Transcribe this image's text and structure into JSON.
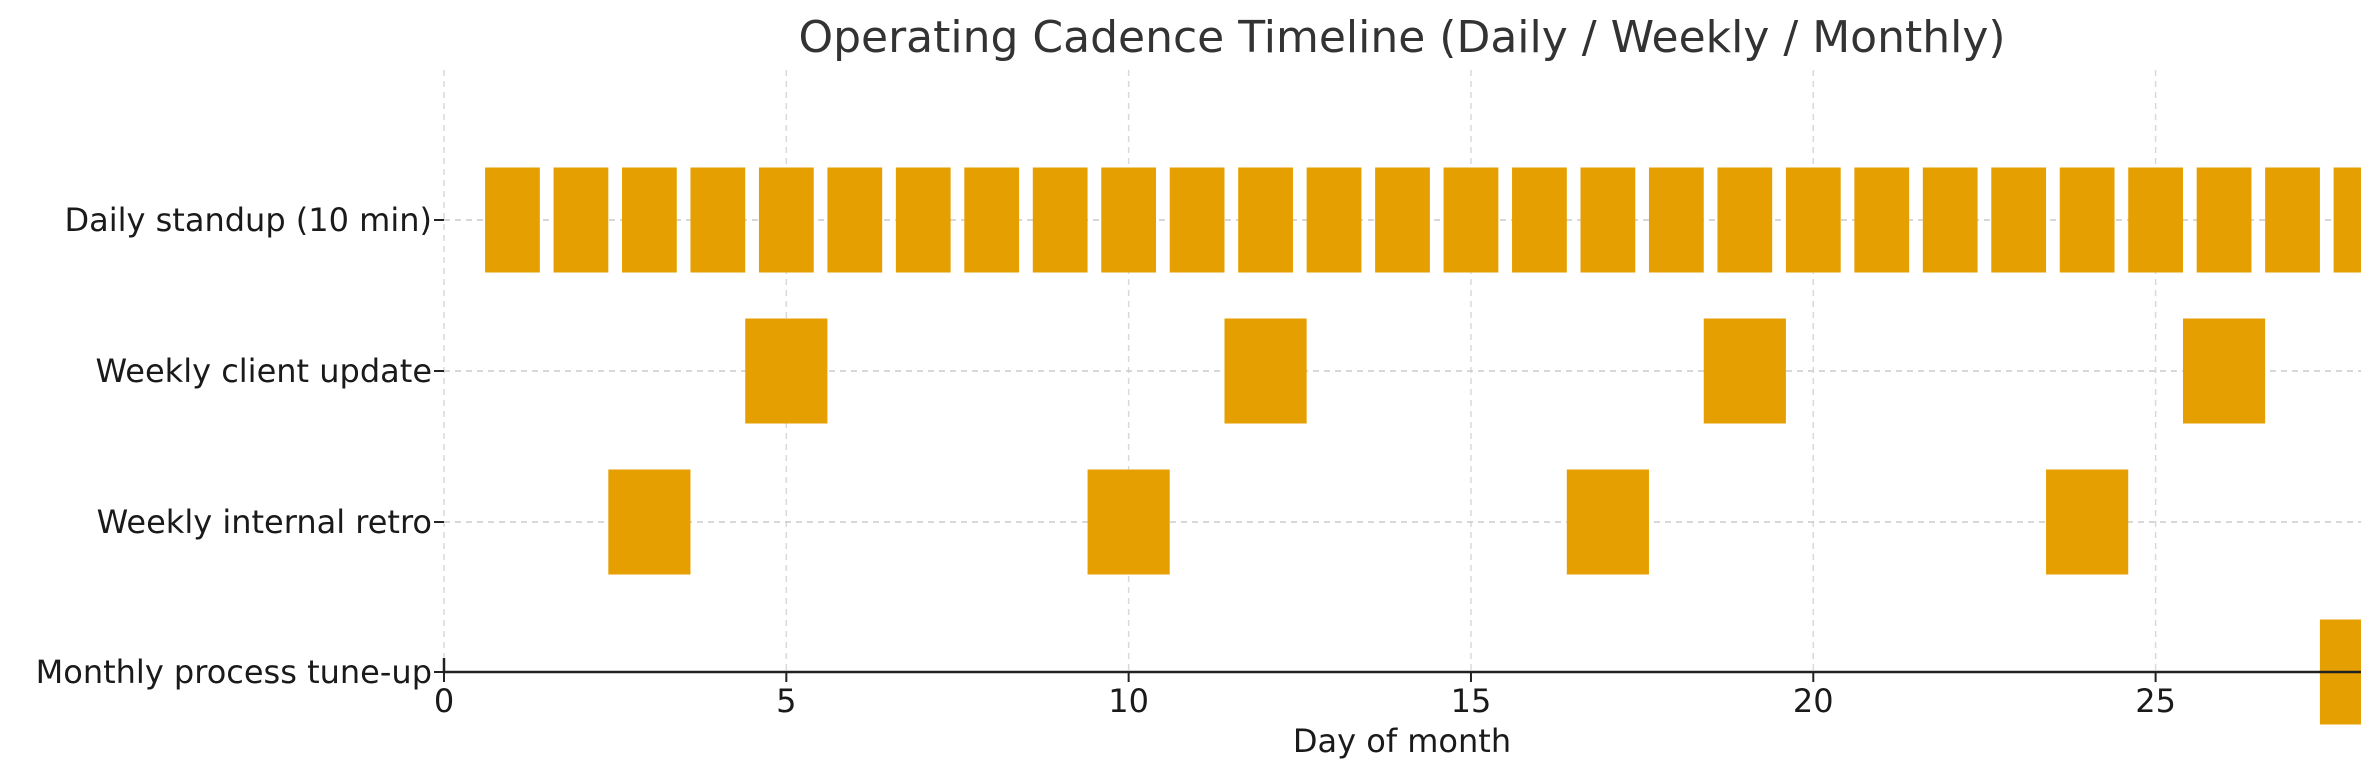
{
  "chart_data": {
    "type": "bar",
    "orientation": "horizontal-timeline",
    "title": "Operating Cadence Timeline (Daily / Weekly / Monthly)",
    "xlabel": "Day of month",
    "ylabel": "",
    "xlim": [
      0,
      28
    ],
    "xticks": [
      0,
      5,
      10,
      15,
      20,
      25
    ],
    "grid": true,
    "bar_color": "#E69F00",
    "rows": [
      {
        "label": "Daily standup (10 min)",
        "bar_width_days": 0.8,
        "events": [
          1,
          2,
          3,
          4,
          5,
          6,
          7,
          8,
          9,
          10,
          11,
          12,
          13,
          14,
          15,
          16,
          17,
          18,
          19,
          20,
          21,
          22,
          23,
          24,
          25,
          26,
          27,
          28
        ]
      },
      {
        "label": "Weekly client update",
        "bar_width_days": 1.2,
        "events": [
          5,
          12,
          19,
          26
        ]
      },
      {
        "label": "Weekly internal retro",
        "bar_width_days": 1.2,
        "events": [
          3,
          10,
          17,
          24
        ]
      },
      {
        "label": "Monthly process tune-up",
        "bar_width_days": 1.2,
        "events": [
          28
        ]
      }
    ]
  }
}
